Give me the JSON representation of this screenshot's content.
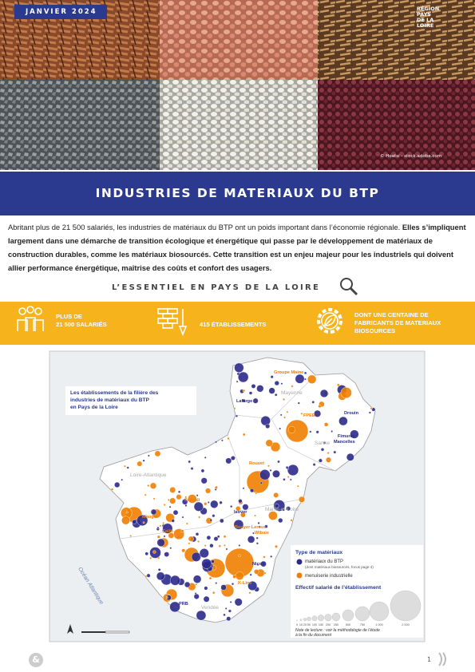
{
  "header": {
    "date": "JANVIER 2024",
    "logo": [
      "RÉGION",
      "PAYS",
      "DE LA",
      "LOIRE"
    ],
    "photo_credit": "© Hoatsi - stock.adobe.com"
  },
  "title": "INDUSTRIES DE MATERIAUX DU BTP",
  "intro": {
    "regular": "Abritant plus de 21 500 salariés, les industries de matériaux du BTP ont un poids important dans l’économie régionale.",
    "bold": "Elles s’impliquent largement dans une démarche de transition écologique et énergétique qui passe par le développement de matériaux de construction durables, comme les matériaux biosourcés. Cette transition est un enjeu majeur pour les industriels qui doivent allier performance énergétique, maîtrise des coûts et confort des usagers."
  },
  "section_heading": "L’ESSENTIEL EN PAYS DE LA LOIRE",
  "kpis": [
    {
      "lines": [
        "PLUS DE",
        "21 500 SALARIÉS"
      ]
    },
    {
      "lines": [
        "415 ÉTABLISSEMENTS"
      ]
    },
    {
      "lines": [
        "DONT UNE CENTAINE DE",
        "FABRICANTS DE MATERIAUX",
        "BIOSOURCES"
      ]
    }
  ],
  "map": {
    "title": [
      "Les établissements de la filière des",
      "industries de matériaux du BTP",
      "en Pays de la Loire"
    ],
    "departments": [
      "Mayenne",
      "Sarthe",
      "Loire-Atlantique",
      "Maine-et-Loire",
      "Vendée"
    ],
    "ocean": "Océan Atlantique",
    "companies": [
      "Groupe Maine",
      "Lafarge",
      "FPEE",
      "Drouin",
      "Fimurex",
      "Mancelles",
      "Rouvet",
      "Sofradi",
      "Isover",
      "Maugin",
      "Calih",
      "Bouyer Leroux",
      "Wibaie",
      "Nicoll",
      "K-Line",
      "PRB"
    ],
    "legend": {
      "type_title": "Type de matériaux",
      "btp": "matériaux du BTP",
      "btp_note": "(dont matériaux biosourcés, focus page 4)",
      "menuiserie": "menuiserie industrielle",
      "size_title": "Effectif salarié de l’établissement",
      "size_ticks": [
        "0",
        "10",
        "20",
        "50",
        "100",
        "150",
        "200",
        "250",
        "500",
        "750",
        "1 000",
        "2 000"
      ],
      "note": [
        "Note de lecture : voir la méthodologie de l’étude",
        "à la fin du document"
      ]
    }
  },
  "footer": {
    "mark": "&",
    "page": "1"
  }
}
